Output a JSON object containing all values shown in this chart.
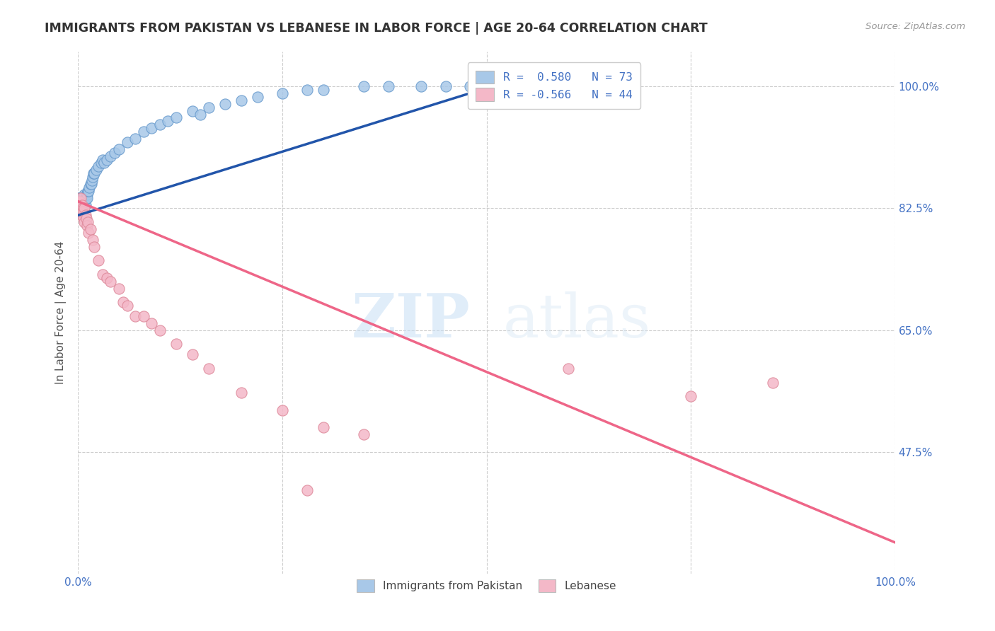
{
  "title": "IMMIGRANTS FROM PAKISTAN VS LEBANESE IN LABOR FORCE | AGE 20-64 CORRELATION CHART",
  "source": "Source: ZipAtlas.com",
  "ylabel": "In Labor Force | Age 20-64",
  "xlim": [
    0.0,
    1.0
  ],
  "ylim": [
    0.3,
    1.05
  ],
  "ytick_positions": [
    0.475,
    0.65,
    0.825,
    1.0
  ],
  "ytick_labels": [
    "47.5%",
    "65.0%",
    "82.5%",
    "100.0%"
  ],
  "blue_color": "#a8c8e8",
  "blue_edge_color": "#6699cc",
  "pink_color": "#f4b8c8",
  "pink_edge_color": "#dd8899",
  "blue_line_color": "#2255aa",
  "pink_line_color": "#ee6688",
  "watermark_zip": "ZIP",
  "watermark_atlas": "atlas",
  "pak_line_x0": 0.0,
  "pak_line_x1": 0.52,
  "pak_line_y0": 0.815,
  "pak_line_y1": 1.005,
  "leb_line_x0": 0.0,
  "leb_line_x1": 1.0,
  "leb_line_y0": 0.835,
  "leb_line_y1": 0.345,
  "pak_points_x": [
    0.001,
    0.001,
    0.001,
    0.001,
    0.002,
    0.002,
    0.002,
    0.002,
    0.003,
    0.003,
    0.003,
    0.004,
    0.004,
    0.004,
    0.005,
    0.005,
    0.005,
    0.006,
    0.006,
    0.006,
    0.007,
    0.007,
    0.007,
    0.008,
    0.008,
    0.009,
    0.009,
    0.009,
    0.01,
    0.01,
    0.011,
    0.011,
    0.012,
    0.013,
    0.014,
    0.015,
    0.016,
    0.017,
    0.018,
    0.019,
    0.02,
    0.022,
    0.025,
    0.028,
    0.03,
    0.032,
    0.035,
    0.04,
    0.045,
    0.05,
    0.06,
    0.07,
    0.08,
    0.09,
    0.1,
    0.11,
    0.12,
    0.14,
    0.16,
    0.18,
    0.2,
    0.22,
    0.25,
    0.28,
    0.3,
    0.35,
    0.38,
    0.42,
    0.45,
    0.48,
    0.5,
    0.52,
    0.15
  ],
  "pak_points_y": [
    0.84,
    0.83,
    0.825,
    0.82,
    0.84,
    0.83,
    0.82,
    0.82,
    0.84,
    0.835,
    0.83,
    0.84,
    0.835,
    0.83,
    0.84,
    0.84,
    0.83,
    0.84,
    0.84,
    0.83,
    0.84,
    0.84,
    0.83,
    0.845,
    0.83,
    0.84,
    0.84,
    0.83,
    0.845,
    0.84,
    0.845,
    0.84,
    0.85,
    0.85,
    0.855,
    0.86,
    0.86,
    0.865,
    0.87,
    0.875,
    0.875,
    0.88,
    0.885,
    0.89,
    0.895,
    0.89,
    0.895,
    0.9,
    0.905,
    0.91,
    0.92,
    0.925,
    0.935,
    0.94,
    0.945,
    0.95,
    0.955,
    0.965,
    0.97,
    0.975,
    0.98,
    0.985,
    0.99,
    0.995,
    0.995,
    1.0,
    1.0,
    1.0,
    1.0,
    1.0,
    1.0,
    1.0,
    0.96
  ],
  "leb_points_x": [
    0.001,
    0.001,
    0.002,
    0.002,
    0.003,
    0.003,
    0.004,
    0.005,
    0.005,
    0.006,
    0.006,
    0.007,
    0.008,
    0.008,
    0.009,
    0.01,
    0.011,
    0.012,
    0.013,
    0.015,
    0.018,
    0.02,
    0.025,
    0.03,
    0.035,
    0.04,
    0.05,
    0.055,
    0.06,
    0.07,
    0.08,
    0.09,
    0.1,
    0.12,
    0.14,
    0.16,
    0.2,
    0.25,
    0.3,
    0.35,
    0.85,
    0.6,
    0.75,
    0.28
  ],
  "leb_points_y": [
    0.835,
    0.83,
    0.835,
    0.825,
    0.84,
    0.82,
    0.82,
    0.83,
    0.815,
    0.825,
    0.82,
    0.81,
    0.825,
    0.805,
    0.815,
    0.81,
    0.8,
    0.805,
    0.79,
    0.795,
    0.78,
    0.77,
    0.75,
    0.73,
    0.725,
    0.72,
    0.71,
    0.69,
    0.685,
    0.67,
    0.67,
    0.66,
    0.65,
    0.63,
    0.615,
    0.595,
    0.56,
    0.535,
    0.51,
    0.5,
    0.575,
    0.595,
    0.555,
    0.42
  ]
}
